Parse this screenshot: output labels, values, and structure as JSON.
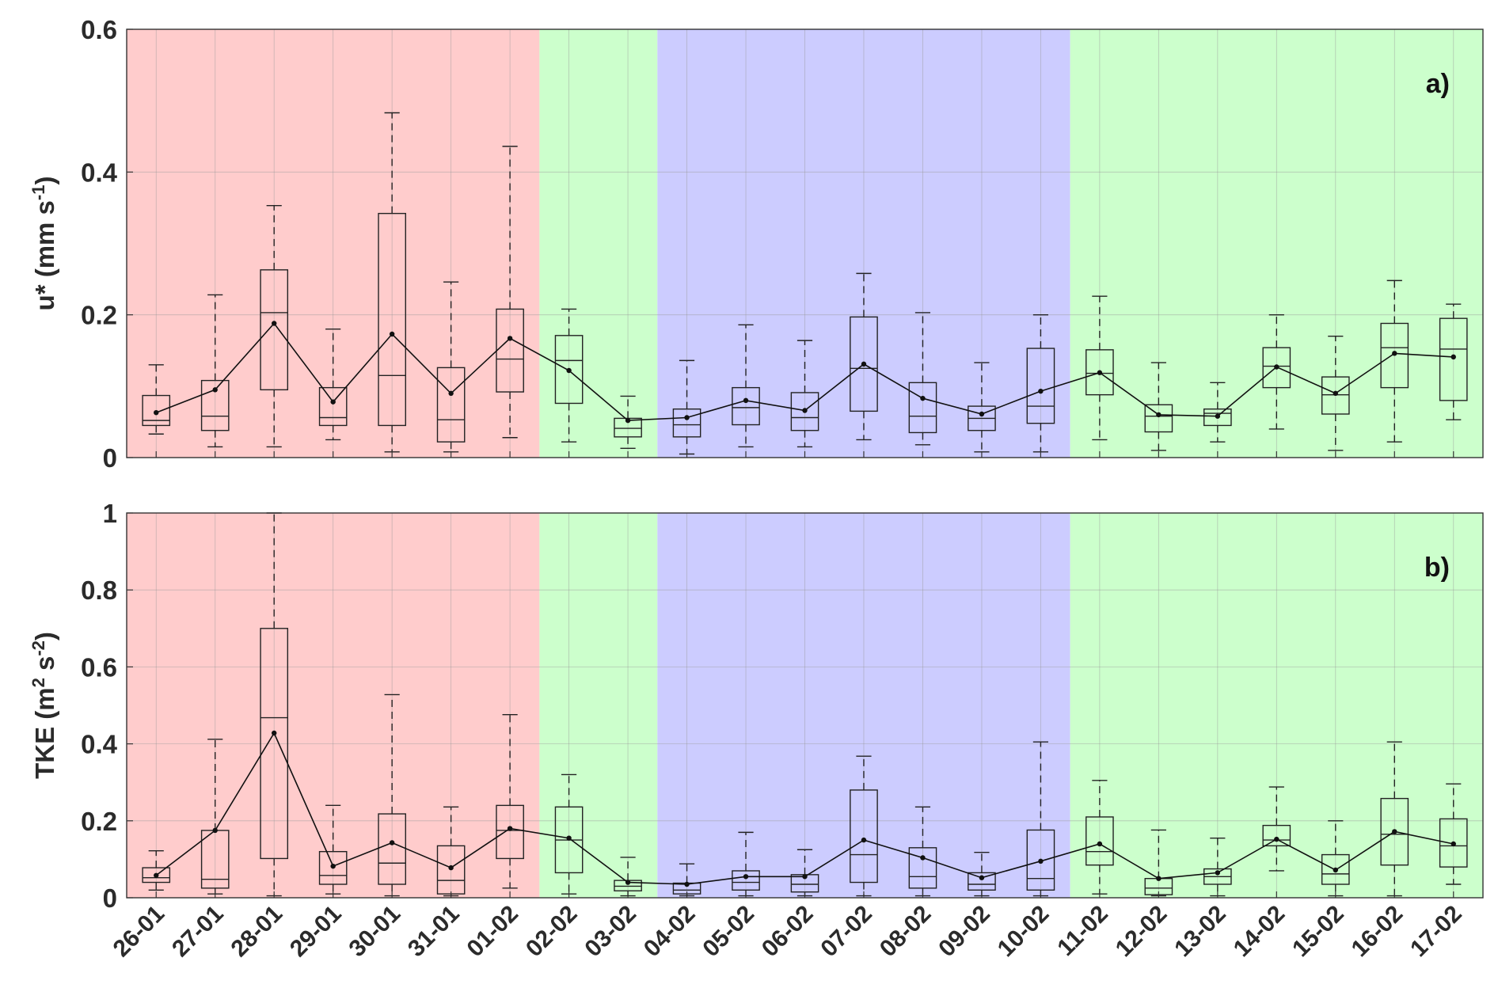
{
  "chart_data": [
    {
      "type": "box",
      "panel_label": "a)",
      "ylabel_main": "u* (mm s",
      "ylabel_sup": "-1",
      "ylabel_end": ")",
      "ylim": [
        0,
        0.6
      ],
      "yticks": [
        0,
        0.2,
        0.4,
        0.6
      ],
      "ytick_labels": [
        "0",
        "0.2",
        "0.4",
        "0.6"
      ],
      "grid": true,
      "categories": [
        "26-01",
        "27-01",
        "28-01",
        "29-01",
        "30-01",
        "31-01",
        "01-02",
        "02-02",
        "03-02",
        "04-02",
        "05-02",
        "06-02",
        "07-02",
        "08-02",
        "09-02",
        "10-02",
        "11-02",
        "12-02",
        "13-02",
        "14-02",
        "15-02",
        "16-02",
        "17-02"
      ],
      "boxes": [
        {
          "whisker_low": 0.033,
          "q1": 0.045,
          "median": 0.052,
          "q3": 0.087,
          "whisker_high": 0.13,
          "mean": 0.063
        },
        {
          "whisker_low": 0.015,
          "q1": 0.038,
          "median": 0.058,
          "q3": 0.108,
          "whisker_high": 0.228,
          "mean": 0.095
        },
        {
          "whisker_low": 0.015,
          "q1": 0.095,
          "median": 0.203,
          "q3": 0.263,
          "whisker_high": 0.353,
          "mean": 0.188
        },
        {
          "whisker_low": 0.025,
          "q1": 0.045,
          "median": 0.056,
          "q3": 0.098,
          "whisker_high": 0.18,
          "mean": 0.078
        },
        {
          "whisker_low": 0.008,
          "q1": 0.045,
          "median": 0.115,
          "q3": 0.342,
          "whisker_high": 0.483,
          "mean": 0.173
        },
        {
          "whisker_low": 0.008,
          "q1": 0.022,
          "median": 0.053,
          "q3": 0.126,
          "whisker_high": 0.246,
          "mean": 0.09
        },
        {
          "whisker_low": 0.028,
          "q1": 0.092,
          "median": 0.138,
          "q3": 0.208,
          "whisker_high": 0.436,
          "mean": 0.167
        },
        {
          "whisker_low": 0.022,
          "q1": 0.076,
          "median": 0.136,
          "q3": 0.171,
          "whisker_high": 0.208,
          "mean": 0.122
        },
        {
          "whisker_low": 0.013,
          "q1": 0.029,
          "median": 0.041,
          "q3": 0.055,
          "whisker_high": 0.086,
          "mean": 0.052
        },
        {
          "whisker_low": 0.005,
          "q1": 0.029,
          "median": 0.046,
          "q3": 0.068,
          "whisker_high": 0.136,
          "mean": 0.056
        },
        {
          "whisker_low": 0.015,
          "q1": 0.046,
          "median": 0.07,
          "q3": 0.098,
          "whisker_high": 0.186,
          "mean": 0.08
        },
        {
          "whisker_low": 0.015,
          "q1": 0.038,
          "median": 0.056,
          "q3": 0.091,
          "whisker_high": 0.164,
          "mean": 0.066
        },
        {
          "whisker_low": 0.025,
          "q1": 0.065,
          "median": 0.125,
          "q3": 0.197,
          "whisker_high": 0.258,
          "mean": 0.131
        },
        {
          "whisker_low": 0.018,
          "q1": 0.035,
          "median": 0.058,
          "q3": 0.105,
          "whisker_high": 0.203,
          "mean": 0.083
        },
        {
          "whisker_low": 0.008,
          "q1": 0.038,
          "median": 0.055,
          "q3": 0.072,
          "whisker_high": 0.133,
          "mean": 0.061
        },
        {
          "whisker_low": 0.008,
          "q1": 0.048,
          "median": 0.072,
          "q3": 0.153,
          "whisker_high": 0.2,
          "mean": 0.093
        },
        {
          "whisker_low": 0.025,
          "q1": 0.088,
          "median": 0.118,
          "q3": 0.151,
          "whisker_high": 0.226,
          "mean": 0.119
        },
        {
          "whisker_low": 0.01,
          "q1": 0.036,
          "median": 0.058,
          "q3": 0.074,
          "whisker_high": 0.133,
          "mean": 0.06
        },
        {
          "whisker_low": 0.022,
          "q1": 0.045,
          "median": 0.062,
          "q3": 0.068,
          "whisker_high": 0.105,
          "mean": 0.058
        },
        {
          "whisker_low": 0.04,
          "q1": 0.098,
          "median": 0.128,
          "q3": 0.154,
          "whisker_high": 0.2,
          "mean": 0.127
        },
        {
          "whisker_low": 0.01,
          "q1": 0.061,
          "median": 0.088,
          "q3": 0.113,
          "whisker_high": 0.17,
          "mean": 0.09
        },
        {
          "whisker_low": 0.022,
          "q1": 0.098,
          "median": 0.154,
          "q3": 0.188,
          "whisker_high": 0.248,
          "mean": 0.146
        },
        {
          "whisker_low": 0.053,
          "q1": 0.08,
          "median": 0.152,
          "q3": 0.195,
          "whisker_high": 0.215,
          "mean": 0.141
        }
      ]
    },
    {
      "type": "box",
      "panel_label": "b)",
      "ylabel_main": "TKE (m",
      "ylabel_sup1": "2",
      "ylabel_mid": " s",
      "ylabel_sup2": "-2",
      "ylabel_end": ")",
      "ylim": [
        0,
        1
      ],
      "yticks": [
        0,
        0.2,
        0.4,
        0.6,
        0.8,
        1
      ],
      "ytick_labels": [
        "0",
        "0.2",
        "0.4",
        "0.6",
        "0.8",
        "1"
      ],
      "grid": true,
      "categories": [
        "26-01",
        "27-01",
        "28-01",
        "29-01",
        "30-01",
        "31-01",
        "01-02",
        "02-02",
        "03-02",
        "04-02",
        "05-02",
        "06-02",
        "07-02",
        "08-02",
        "09-02",
        "10-02",
        "11-02",
        "12-02",
        "13-02",
        "14-02",
        "15-02",
        "16-02",
        "17-02"
      ],
      "boxes": [
        {
          "whisker_low": 0.02,
          "q1": 0.04,
          "median": 0.052,
          "q3": 0.078,
          "whisker_high": 0.122,
          "mean": 0.058
        },
        {
          "whisker_low": 0.01,
          "q1": 0.025,
          "median": 0.048,
          "q3": 0.175,
          "whisker_high": 0.412,
          "mean": 0.175
        },
        {
          "whisker_low": 0.005,
          "q1": 0.102,
          "median": 0.468,
          "q3": 0.7,
          "whisker_high": 1.0,
          "mean": 0.428
        },
        {
          "whisker_low": 0.01,
          "q1": 0.035,
          "median": 0.058,
          "q3": 0.12,
          "whisker_high": 0.24,
          "mean": 0.082
        },
        {
          "whisker_low": 0.005,
          "q1": 0.035,
          "median": 0.09,
          "q3": 0.218,
          "whisker_high": 0.528,
          "mean": 0.143
        },
        {
          "whisker_low": 0.005,
          "q1": 0.01,
          "median": 0.045,
          "q3": 0.135,
          "whisker_high": 0.236,
          "mean": 0.078
        },
        {
          "whisker_low": 0.025,
          "q1": 0.102,
          "median": 0.175,
          "q3": 0.24,
          "whisker_high": 0.476,
          "mean": 0.18
        },
        {
          "whisker_low": 0.01,
          "q1": 0.065,
          "median": 0.15,
          "q3": 0.236,
          "whisker_high": 0.32,
          "mean": 0.155
        },
        {
          "whisker_low": 0.005,
          "q1": 0.018,
          "median": 0.03,
          "q3": 0.045,
          "whisker_high": 0.105,
          "mean": 0.04
        },
        {
          "whisker_low": 0.005,
          "q1": 0.01,
          "median": 0.02,
          "q3": 0.038,
          "whisker_high": 0.088,
          "mean": 0.035
        },
        {
          "whisker_low": 0.005,
          "q1": 0.02,
          "median": 0.04,
          "q3": 0.07,
          "whisker_high": 0.17,
          "mean": 0.055
        },
        {
          "whisker_low": 0.005,
          "q1": 0.015,
          "median": 0.035,
          "q3": 0.06,
          "whisker_high": 0.125,
          "mean": 0.055
        },
        {
          "whisker_low": 0.005,
          "q1": 0.04,
          "median": 0.112,
          "q3": 0.28,
          "whisker_high": 0.368,
          "mean": 0.15
        },
        {
          "whisker_low": 0.005,
          "q1": 0.025,
          "median": 0.055,
          "q3": 0.13,
          "whisker_high": 0.236,
          "mean": 0.104
        },
        {
          "whisker_low": 0.005,
          "q1": 0.02,
          "median": 0.035,
          "q3": 0.065,
          "whisker_high": 0.118,
          "mean": 0.052
        },
        {
          "whisker_low": 0.005,
          "q1": 0.02,
          "median": 0.05,
          "q3": 0.176,
          "whisker_high": 0.405,
          "mean": 0.095
        },
        {
          "whisker_low": 0.01,
          "q1": 0.085,
          "median": 0.12,
          "q3": 0.21,
          "whisker_high": 0.305,
          "mean": 0.14
        },
        {
          "whisker_low": 0.005,
          "q1": 0.008,
          "median": 0.025,
          "q3": 0.05,
          "whisker_high": 0.176,
          "mean": 0.05
        },
        {
          "whisker_low": 0.005,
          "q1": 0.035,
          "median": 0.055,
          "q3": 0.075,
          "whisker_high": 0.155,
          "mean": 0.065
        },
        {
          "whisker_low": 0.07,
          "q1": 0.135,
          "median": 0.15,
          "q3": 0.188,
          "whisker_high": 0.288,
          "mean": 0.152
        },
        {
          "whisker_low": 0.005,
          "q1": 0.035,
          "median": 0.062,
          "q3": 0.112,
          "whisker_high": 0.2,
          "mean": 0.072
        },
        {
          "whisker_low": 0.005,
          "q1": 0.085,
          "median": 0.165,
          "q3": 0.258,
          "whisker_high": 0.405,
          "mean": 0.172
        },
        {
          "whisker_low": 0.035,
          "q1": 0.08,
          "median": 0.135,
          "q3": 0.205,
          "whisker_high": 0.296,
          "mean": 0.14
        }
      ]
    }
  ],
  "background_periods": [
    {
      "from_index": 0,
      "to_index": 6,
      "color": "#ffcccc"
    },
    {
      "from_index": 7,
      "to_index": 8,
      "color": "#ccffcc"
    },
    {
      "from_index": 9,
      "to_index": 15,
      "color": "#ccccff"
    },
    {
      "from_index": 16,
      "to_index": 22,
      "color": "#ccffcc"
    }
  ],
  "colors": {
    "box_stroke": "#222222",
    "mean_line": "#111111",
    "grid": "#9a9a9a",
    "axis": "#333333"
  }
}
